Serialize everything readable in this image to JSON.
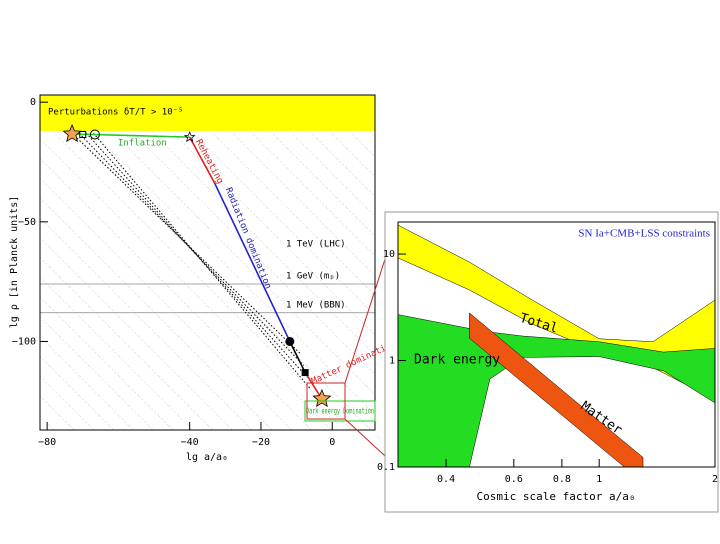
{
  "chart_data": [
    {
      "type": "line",
      "xlabel": "lg a/a₀",
      "ylabel": "lg ρ [in Planck units]",
      "xlim": [
        -82,
        12
      ],
      "ylim": [
        -137,
        3
      ],
      "xticks": [
        {
          "value": -80,
          "label": "−80"
        },
        {
          "value": -40,
          "label": "−40"
        },
        {
          "value": -20,
          "label": "−20"
        },
        0
      ],
      "yticks": [
        0,
        {
          "value": -50,
          "label": "−50"
        },
        {
          "value": -100,
          "label": "−100"
        }
      ],
      "band": {
        "ylim": [
          -12,
          3
        ],
        "color": "#ffff00",
        "label": "Perturbations δT/T > 10⁻⁵"
      },
      "hlines": [
        {
          "value": -76,
          "label": "1 GeV (mₚ)"
        },
        {
          "value": -88,
          "label": "1 MeV (BBN)"
        }
      ],
      "annotations": [
        "Inflation",
        "Reheating",
        "Radiation domination",
        "1 TeV (LHC)",
        "Matter domination",
        "Dark energy Domination"
      ],
      "series": [
        {
          "color": "#000000",
          "dash": true,
          "x": [
            -73,
            -9
          ],
          "y": [
            -13,
            -105
          ]
        },
        {
          "color": "#000000",
          "dash": true,
          "x": [
            -71,
            -8
          ],
          "y": [
            -13,
            -110
          ]
        },
        {
          "color": "#000000",
          "dash": true,
          "x": [
            -69,
            -7
          ],
          "y": [
            -13,
            -115
          ]
        },
        {
          "color": "#000000",
          "dash": true,
          "x": [
            -67,
            -6
          ],
          "y": [
            -13,
            -120
          ]
        },
        {
          "color": "#22cc22",
          "dash": false,
          "x": [
            -73,
            -40
          ],
          "y": [
            -13.3,
            -14.6
          ]
        },
        {
          "color": "#dd2222",
          "dash": false,
          "x": [
            -40,
            -33
          ],
          "y": [
            -14.6,
            -33.8
          ]
        },
        {
          "color": "#2222cc",
          "dash": false,
          "x": [
            -33,
            -11.9
          ],
          "y": [
            -33.8,
            -100
          ]
        },
        {
          "color": "#000000",
          "dash": false,
          "x": [
            -11.9,
            -7.6
          ],
          "y": [
            -100,
            -113
          ]
        },
        {
          "color": "#dd2222",
          "dash": false,
          "x": [
            -7.6,
            -2.9
          ],
          "y": [
            -113,
            -124
          ]
        }
      ],
      "points": {
        "x": [
          -73,
          -70,
          -66.6,
          -40,
          -11.9,
          -7.6,
          -2.9
        ],
        "y": [
          -13.3,
          -13.5,
          -13.5,
          -14.6,
          -100,
          -113,
          -124
        ],
        "shapes": [
          "star",
          "square",
          "circle",
          "star",
          "dot",
          "square",
          "star"
        ]
      }
    },
    {
      "type": "area",
      "title": "SN Ia+CMB+LSS constraints",
      "xlabel": "Cosmic scale factor a/a₀",
      "log_x": true,
      "log_y": true,
      "xlim": [
        0.3,
        2
      ],
      "ylim": [
        0.1,
        20
      ],
      "xticks": [
        0.4,
        0.6,
        0.8,
        1,
        2
      ],
      "yticks": [
        0.1,
        1,
        10
      ],
      "series": [
        {
          "name": "Total",
          "color": "#ffff00",
          "x": [
            0.3,
            0.46,
            0.67,
            1,
            1.38,
            2
          ],
          "upper": [
            18.7,
            8.4,
            3.7,
            1.6,
            1.5,
            3.7
          ],
          "lower": [
            9.2,
            4.6,
            2.2,
            1.2,
            0.86,
            0.43
          ]
        },
        {
          "name": "Dark energy",
          "color": "#22dd22",
          "x": [
            0.3,
            0.46,
            0.52,
            0.63,
            1,
            1.47,
            2
          ],
          "upper": [
            2.7,
            2.0,
            1.85,
            1.7,
            1.5,
            1.2,
            1.3
          ],
          "lower": [
            0.1,
            0.1,
            0.67,
            1.07,
            1.09,
            0.8,
            0.4
          ]
        },
        {
          "name": "Matter",
          "color": "#ee5511",
          "x": [
            0.46,
            1,
            1.3
          ],
          "upper": [
            2.8,
            0.27,
            0.123
          ],
          "lower": [
            1.62,
            0.157,
            0.0715
          ]
        }
      ]
    }
  ]
}
